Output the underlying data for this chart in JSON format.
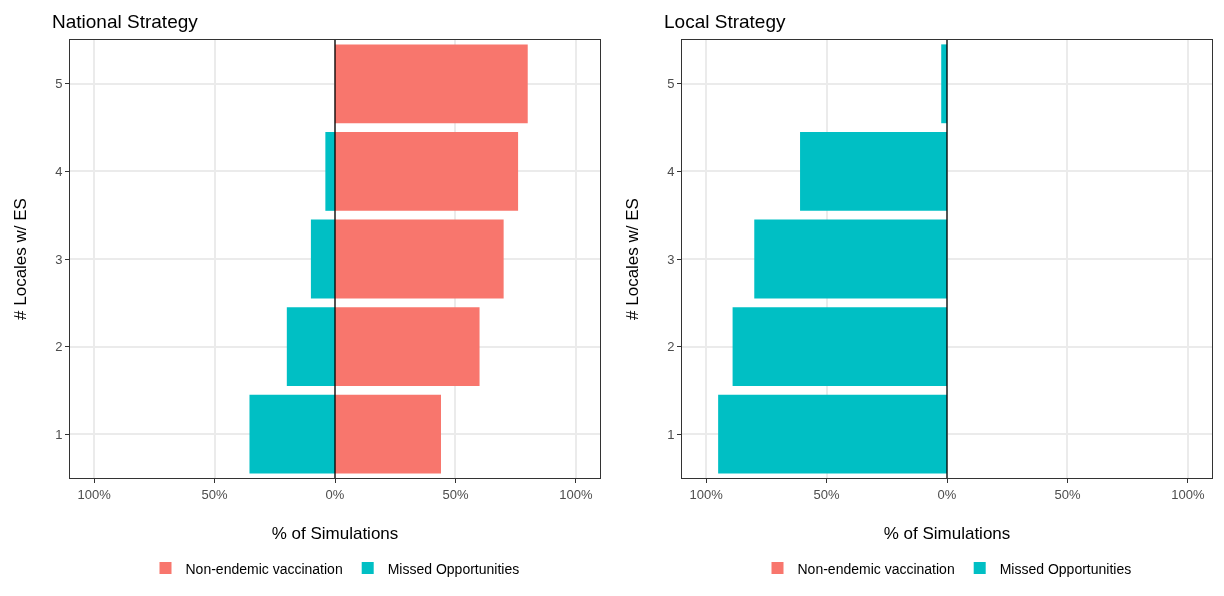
{
  "chart_data": [
    {
      "type": "bar",
      "title": "National Strategy",
      "xlabel": "% of Simulations",
      "ylabel": "# Locales w/ ES",
      "orientation": "horizontal",
      "stacked": true,
      "categories": [
        "5",
        "4",
        "3",
        "2",
        "1"
      ],
      "series": [
        {
          "name": "Non-endemic vaccination",
          "color": "#f8766d",
          "values": [
            80,
            76,
            70,
            60,
            44
          ]
        },
        {
          "name": "Missed Opportunities",
          "color": "#00bfc4",
          "values": [
            null,
            -4,
            -10,
            -20,
            -35.5
          ]
        }
      ],
      "xlim": [
        -110,
        110
      ],
      "xticks": [
        {
          "value": 0,
          "label": "0%"
        },
        {
          "value": 50,
          "label": "50%"
        },
        {
          "value": 100,
          "label": "100%"
        },
        {
          "value": -50,
          "label": "50%"
        },
        {
          "value": -100,
          "label": "100%"
        }
      ],
      "ref_lines": [
        {
          "axis": "x",
          "value": 0,
          "color": "#000000"
        }
      ],
      "grid": true,
      "legend": "bottom"
    },
    {
      "type": "bar",
      "title": "Local Strategy",
      "xlabel": "% of Simulations",
      "ylabel": "# Locales w/ ES",
      "orientation": "horizontal",
      "stacked": true,
      "categories": [
        "5",
        "4",
        "3",
        "2",
        "1"
      ],
      "series": [
        {
          "name": "Non-endemic vaccination",
          "color": "#f8766d",
          "values": [
            null,
            null,
            null,
            null,
            null
          ]
        },
        {
          "name": "Missed Opportunities",
          "color": "#00bfc4",
          "values": [
            -2.4,
            -61,
            -80,
            -89,
            -95
          ]
        }
      ],
      "xlim": [
        -110,
        110
      ],
      "xticks": [
        {
          "value": 0,
          "label": "0%"
        },
        {
          "value": 50,
          "label": "50%"
        },
        {
          "value": 100,
          "label": "100%"
        },
        {
          "value": -50,
          "label": "50%"
        },
        {
          "value": -100,
          "label": "100%"
        }
      ],
      "ref_lines": [
        {
          "axis": "x",
          "value": 0,
          "color": "#000000"
        }
      ],
      "grid": true,
      "legend": "bottom"
    }
  ]
}
